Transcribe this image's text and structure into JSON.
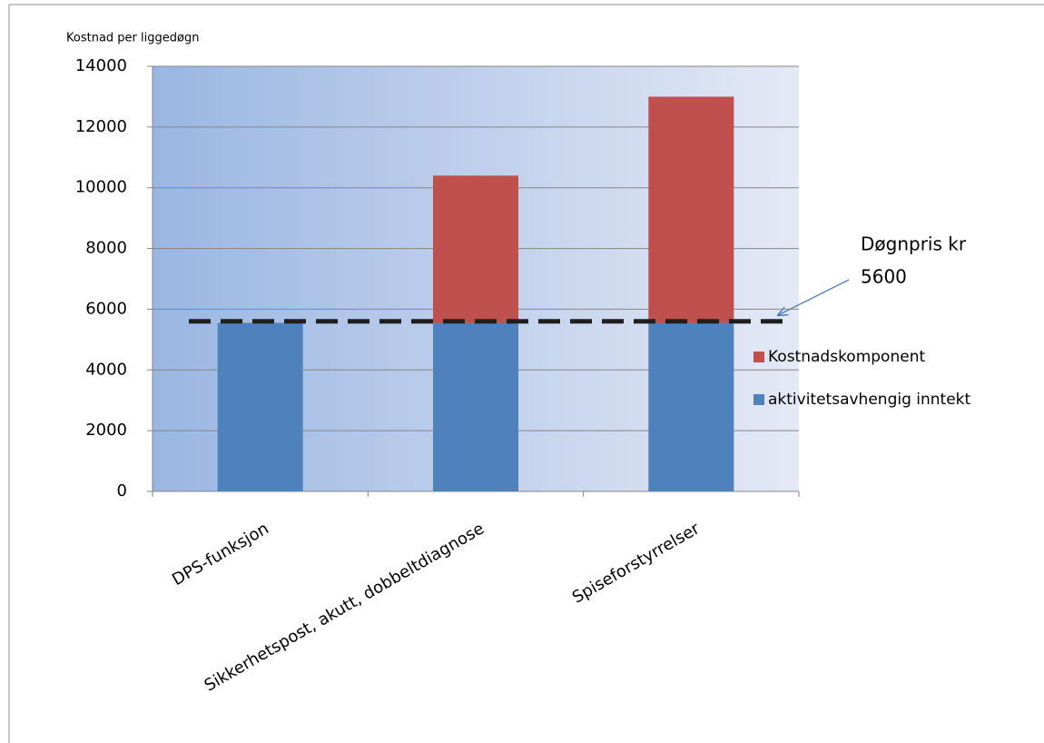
{
  "chart_data": {
    "type": "stacked_bar",
    "y_label": "Kostnad per liggedøgn",
    "categories": [
      "DPS-funksjon",
      "Sikkerhetspost, akutt, dobbeltdiagnose",
      "Spiseforstyrrelser"
    ],
    "series": [
      {
        "name": "aktivitetsavhengig inntekt",
        "color": "#4f81bd",
        "values": [
          5550,
          5550,
          5550
        ]
      },
      {
        "name": "Kostnadskomponent",
        "color": "#c0504d",
        "values": [
          0,
          4850,
          7450
        ]
      }
    ],
    "reference_line": {
      "value": 5600,
      "color": "#1f1f1f",
      "label_lines": [
        "Døgnpris kr",
        "5600"
      ]
    },
    "ylim": [
      0,
      14000
    ],
    "yticks": [
      0,
      2000,
      4000,
      6000,
      8000,
      10000,
      12000,
      14000
    ],
    "grid": true
  }
}
